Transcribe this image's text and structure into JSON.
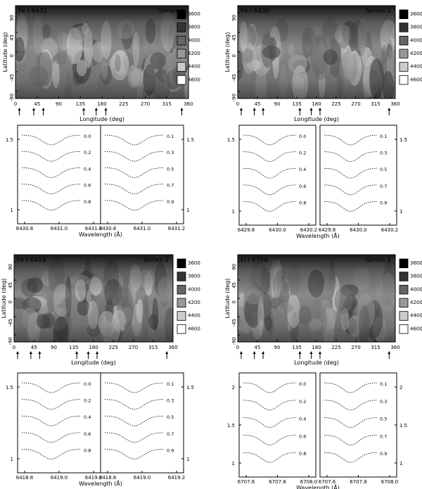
{
  "chart_data": [
    {
      "type": "heatmap",
      "title": "Fe I 6431",
      "series_label": "Series 1",
      "xlabel": "Longitude (deg)",
      "ylabel": "Latitude (deg)",
      "xticks": [
        "0",
        "45",
        "90",
        "135",
        "180",
        "225",
        "270",
        "315",
        "360"
      ],
      "yticks": [
        "90",
        "45",
        "0",
        "-45",
        "-90"
      ],
      "colorbar": [
        "3600",
        "3800",
        "4000",
        "4200",
        "4400",
        "4600"
      ],
      "phase_arrows_deg": [
        8,
        38,
        58,
        142,
        168,
        188,
        346
      ],
      "profiles": {
        "type": "line",
        "xlabel": "Wavelength (Å)",
        "left_xticks": [
          "6430.8",
          "6431.0",
          "6431.2"
        ],
        "right_xticks": [
          "6430.8",
          "6431.0",
          "6431.2"
        ],
        "yticks": [
          "1",
          "1.5"
        ],
        "left_labels": [
          "0.0",
          "0.2",
          "0.4",
          "0.6",
          "0.8"
        ],
        "right_labels": [
          "0.1",
          "0.3",
          "0.5",
          "0.7",
          "0.9"
        ]
      }
    },
    {
      "type": "heatmap",
      "title": "Fe I 6430",
      "series_label": "Series 2",
      "xlabel": "Longitude (deg)",
      "ylabel": "Latitude (deg)",
      "xticks": [
        "0",
        "45",
        "90",
        "135",
        "180",
        "225",
        "270",
        "315",
        "360"
      ],
      "yticks": [
        "90",
        "45",
        "0",
        "-45",
        "-90"
      ],
      "colorbar": [
        "3600",
        "3800",
        "4000",
        "4200",
        "4400",
        "4600"
      ],
      "phase_arrows_deg": [
        8,
        38,
        58,
        142,
        168,
        188,
        346
      ],
      "profiles": {
        "type": "line",
        "xlabel": "Wavelength (Å)",
        "left_xticks": [
          "6429.8",
          "6430.0",
          "6430.2"
        ],
        "right_xticks": [
          "6429.8",
          "6430.0",
          "6430.2"
        ],
        "yticks": [
          "1",
          "1.5"
        ],
        "left_labels": [
          "0.0",
          "0.2",
          "0.4",
          "0.6",
          "0.8"
        ],
        "right_labels": [
          "0.1",
          "0.3",
          "0.5",
          "0.7",
          "0.9"
        ]
      }
    },
    {
      "type": "heatmap",
      "title": "Fe I 6419",
      "series_label": "Series 2",
      "xlabel": "Longitude (deg)",
      "ylabel": "Latitude (deg)",
      "xticks": [
        "0",
        "45",
        "90",
        "135",
        "180",
        "225",
        "270",
        "315",
        "360"
      ],
      "yticks": [
        "90",
        "45",
        "0",
        "-45",
        "-90"
      ],
      "colorbar": [
        "3600",
        "3800",
        "4000",
        "4200",
        "4400",
        "4600"
      ],
      "phase_arrows_deg": [
        8,
        38,
        58,
        142,
        168,
        188,
        346
      ],
      "profiles": {
        "type": "line",
        "xlabel": "Wavelength (Å)",
        "left_xticks": [
          "6418.8",
          "6419.0",
          "6419.2"
        ],
        "right_xticks": [
          "6418.8",
          "6419.0",
          "6419.2"
        ],
        "yticks": [
          "1",
          "1.5"
        ],
        "left_labels": [
          "0.0",
          "0.2",
          "0.4",
          "0.6",
          "0.8"
        ],
        "right_labels": [
          "0.1",
          "0.3",
          "0.5",
          "0.7",
          "0.9"
        ]
      }
    },
    {
      "type": "heatmap",
      "title": "Li I 6708",
      "series_label": "Series 2",
      "xlabel": "Longitude (deg)",
      "ylabel": "Latitude (deg)",
      "xticks": [
        "0",
        "45",
        "90",
        "135",
        "180",
        "225",
        "270",
        "315",
        "360"
      ],
      "yticks": [
        "90",
        "45",
        "0",
        "-45",
        "-90"
      ],
      "colorbar": [
        "3600",
        "3800",
        "4000",
        "4200",
        "4400",
        "4600"
      ],
      "phase_arrows_deg": [
        8,
        38,
        58,
        142,
        168,
        188,
        346
      ],
      "profiles": {
        "type": "line",
        "xlabel": "Wavelength (Å)",
        "left_xticks": [
          "6707.6",
          "6707.8",
          "6708.0"
        ],
        "right_xticks": [
          "6707.6",
          "6707.8",
          "6708.0"
        ],
        "yticks": [
          "1",
          "1.5",
          "2"
        ],
        "left_labels": [
          "0.0",
          "0.2",
          "0.4",
          "0.6",
          "0.8"
        ],
        "right_labels": [
          "0.1",
          "0.3",
          "0.5",
          "0.7",
          "0.9"
        ]
      }
    }
  ]
}
